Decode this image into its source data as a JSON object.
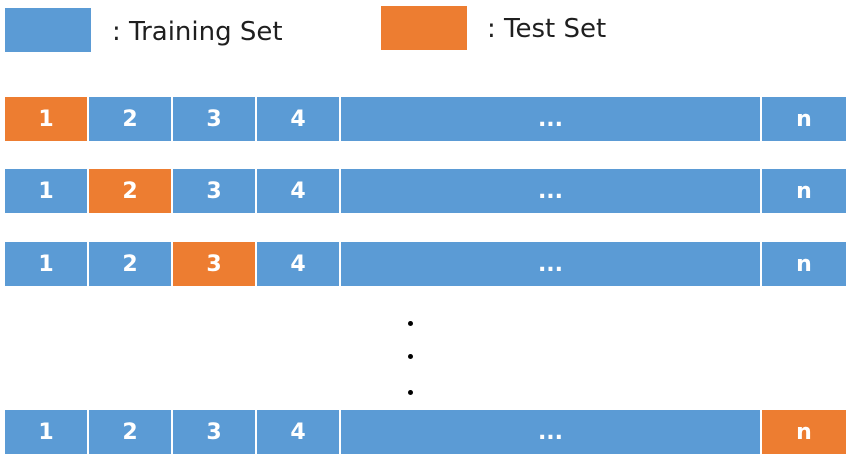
{
  "colors": {
    "training": "#5b9bd5",
    "test": "#ed7d31"
  },
  "legend": {
    "training_label": ": Training Set",
    "test_label": ": Test Set"
  },
  "fold_labels": [
    "1",
    "2",
    "3",
    "4",
    "...",
    "n"
  ],
  "rows": [
    {
      "test_index": 0
    },
    {
      "test_index": 1
    },
    {
      "test_index": 2
    },
    {
      "test_index": 5
    }
  ],
  "ellipsis_dots": [
    "•",
    "•",
    "•"
  ]
}
